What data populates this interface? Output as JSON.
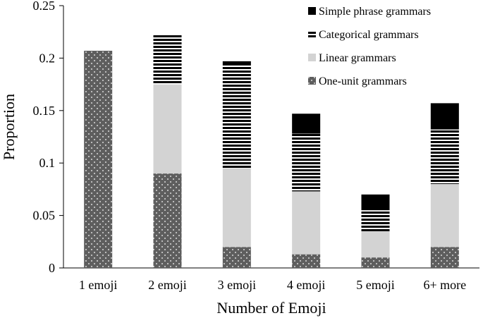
{
  "chart_data": {
    "type": "bar",
    "stacked": true,
    "xlabel": "Number of Emoji",
    "ylabel": "Proportion",
    "ylim": [
      0,
      0.25
    ],
    "yticks": [
      "0",
      "0.05",
      "0.1",
      "0.15",
      "0.2",
      "0.25"
    ],
    "grid": false,
    "legend_position": "top-right",
    "categories": [
      "1 emoji",
      "2 emoji",
      "3 emoji",
      "4 emoji",
      "5 emoji",
      "6+ more"
    ],
    "series": [
      {
        "name": "One-unit grammars",
        "pattern": "dots",
        "color": "#5e5e5e",
        "values": [
          0.207,
          0.09,
          0.02,
          0.013,
          0.01,
          0.02
        ]
      },
      {
        "name": "Linear grammars",
        "pattern": "solid",
        "color": "#d3d3d3",
        "values": [
          0,
          0.085,
          0.075,
          0.06,
          0.025,
          0.06
        ]
      },
      {
        "name": "Categorical grammars",
        "pattern": "hstripes",
        "color": "#000000",
        "values": [
          0,
          0.047,
          0.098,
          0.055,
          0.02,
          0.052
        ]
      },
      {
        "name": "Simple phrase grammars",
        "pattern": "solid",
        "color": "#000000",
        "values": [
          0,
          0,
          0.004,
          0.019,
          0.015,
          0.025
        ]
      }
    ],
    "legend_order": [
      "Simple phrase grammars",
      "Categorical grammars",
      "Linear grammars",
      "One-unit grammars"
    ]
  }
}
